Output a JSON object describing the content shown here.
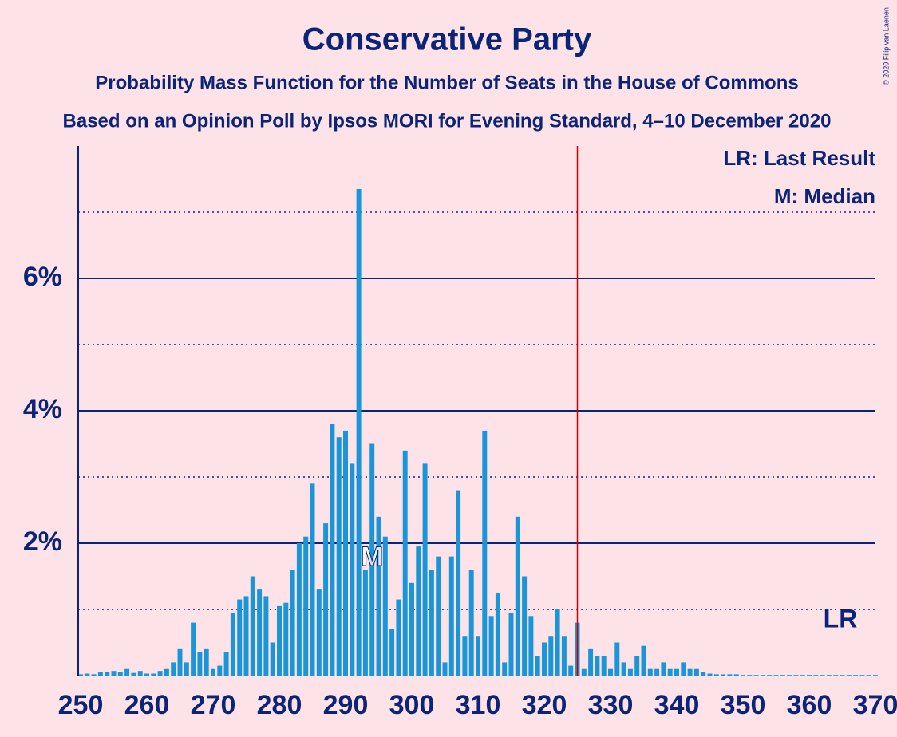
{
  "chart_data": {
    "type": "bar",
    "title": "Conservative Party",
    "subtitle": "Probability Mass Function for the Number of Seats in the House of Commons",
    "subtitle2": "Based on an Opinion Poll by Ipsos MORI for Evening Standard, 4–10 December 2020",
    "copyright": "© 2020 Filip van Laenen",
    "legend": [
      "LR: Last Result",
      "M: Median"
    ],
    "last_result": 325,
    "last_result_label": "LR",
    "median": 294,
    "median_label": "M",
    "color": "#1a96d8",
    "last_result_color": "#cc0000",
    "x": [
      250,
      251,
      252,
      253,
      254,
      255,
      256,
      257,
      258,
      259,
      260,
      261,
      262,
      263,
      264,
      265,
      266,
      267,
      268,
      269,
      270,
      271,
      272,
      273,
      274,
      275,
      276,
      277,
      278,
      279,
      280,
      281,
      282,
      283,
      284,
      285,
      286,
      287,
      288,
      289,
      290,
      291,
      292,
      293,
      294,
      295,
      296,
      297,
      298,
      299,
      300,
      301,
      302,
      303,
      304,
      305,
      306,
      307,
      308,
      309,
      310,
      311,
      312,
      313,
      314,
      315,
      316,
      317,
      318,
      319,
      320,
      321,
      322,
      323,
      324,
      325,
      326,
      327,
      328,
      329,
      330,
      331,
      332,
      333,
      334,
      335,
      336,
      337,
      338,
      339,
      340,
      341,
      342,
      343,
      344,
      345,
      346,
      347,
      348,
      349,
      350,
      351,
      352,
      353,
      354,
      355,
      356,
      357,
      358,
      359,
      360,
      361,
      362,
      363,
      364,
      365,
      366,
      367,
      368,
      369,
      370
    ],
    "values": [
      0.02,
      0.03,
      0.02,
      0.05,
      0.05,
      0.07,
      0.05,
      0.1,
      0.04,
      0.07,
      0.03,
      0.03,
      0.07,
      0.1,
      0.2,
      0.4,
      0.2,
      0.8,
      0.35,
      0.4,
      0.1,
      0.15,
      0.35,
      0.95,
      1.15,
      1.2,
      1.5,
      1.3,
      1.2,
      0.5,
      1.05,
      1.1,
      1.6,
      2.0,
      2.1,
      2.9,
      1.3,
      2.3,
      3.8,
      3.6,
      3.7,
      3.2,
      7.35,
      1.6,
      3.5,
      2.4,
      2.1,
      0.7,
      1.15,
      3.4,
      1.4,
      1.95,
      3.2,
      1.6,
      1.8,
      0.2,
      1.8,
      2.8,
      0.6,
      1.6,
      0.6,
      3.7,
      0.9,
      1.25,
      0.2,
      0.95,
      2.4,
      1.5,
      0.9,
      0.3,
      0.5,
      0.6,
      1.0,
      0.6,
      0.15,
      0.8,
      0.1,
      0.4,
      0.3,
      0.3,
      0.1,
      0.5,
      0.2,
      0.1,
      0.3,
      0.45,
      0.1,
      0.1,
      0.2,
      0.1,
      0.1,
      0.2,
      0.1,
      0.1,
      0.05,
      0.03,
      0.02,
      0.02,
      0.02,
      0.02,
      0.01,
      0.01,
      0.01,
      0.01,
      0.01,
      0.01,
      0.01,
      0.01,
      0.01,
      0.01,
      0.01,
      0.01,
      0.01,
      0.01,
      0.01,
      0.01,
      0.01,
      0.01,
      0.01,
      0.01,
      0.01
    ],
    "xlim": [
      250,
      370
    ],
    "xticks": [
      250,
      260,
      270,
      280,
      290,
      300,
      310,
      320,
      330,
      340,
      350,
      360,
      370
    ],
    "ylim": [
      0,
      8
    ],
    "yticks": [
      {
        "value": 2,
        "label": "2%"
      },
      {
        "value": 4,
        "label": "4%"
      },
      {
        "value": 6,
        "label": "6%"
      }
    ],
    "minor_gridlines": [
      1,
      3,
      5,
      7
    ],
    "grid": true
  }
}
